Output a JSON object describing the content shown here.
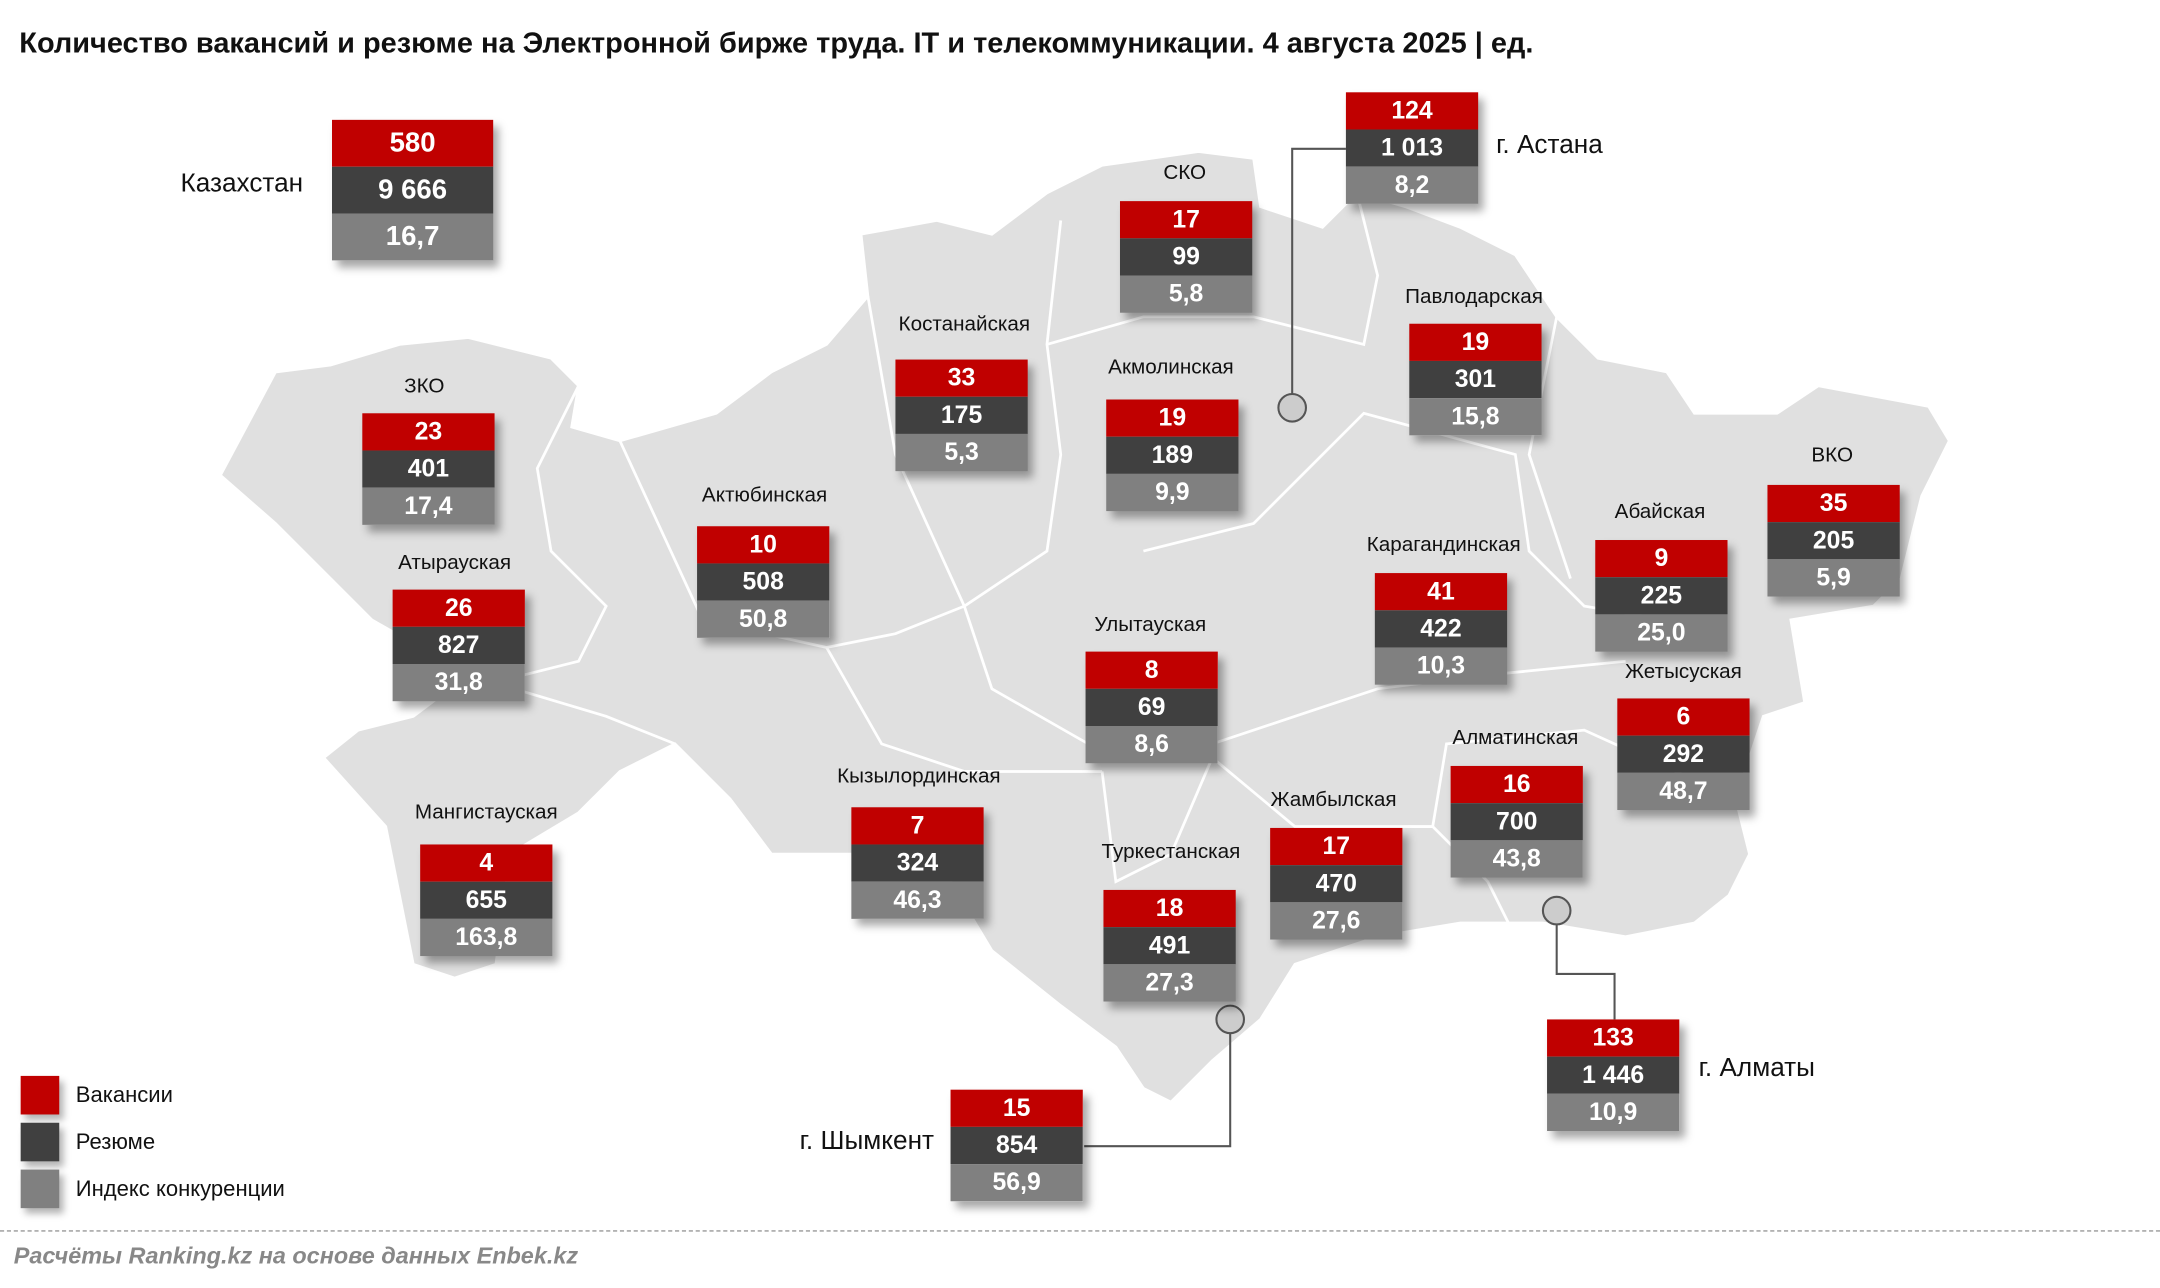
{
  "title": "Количество вакансий и резюме на Электронной бирже труда. IT и телекоммуникации. 4 августа 2025 | ед.",
  "colors": {
    "vacancies": "#c00000",
    "resumes": "#404040",
    "index": "#808080",
    "map_fill": "#e0e0e0"
  },
  "country": {
    "name": "Казахстан",
    "v": "580",
    "r": "9 666",
    "i": "16,7"
  },
  "regions": [
    {
      "name": "г. Астана",
      "v": "124",
      "r": "1 013",
      "i": "8,2"
    },
    {
      "name": "СКО",
      "v": "17",
      "r": "99",
      "i": "5,8"
    },
    {
      "name": "Павлодарская",
      "v": "19",
      "r": "301",
      "i": "15,8"
    },
    {
      "name": "Костанайская",
      "v": "33",
      "r": "175",
      "i": "5,3"
    },
    {
      "name": "Акмолинская",
      "v": "19",
      "r": "189",
      "i": "9,9"
    },
    {
      "name": "ЗКО",
      "v": "23",
      "r": "401",
      "i": "17,4"
    },
    {
      "name": "Актюбинская",
      "v": "10",
      "r": "508",
      "i": "50,8"
    },
    {
      "name": "ВКО",
      "v": "35",
      "r": "205",
      "i": "5,9"
    },
    {
      "name": "Абайская",
      "v": "9",
      "r": "225",
      "i": "25,0"
    },
    {
      "name": "Карагандинская",
      "v": "41",
      "r": "422",
      "i": "10,3"
    },
    {
      "name": "Атырауская",
      "v": "26",
      "r": "827",
      "i": "31,8"
    },
    {
      "name": "Улытауская",
      "v": "8",
      "r": "69",
      "i": "8,6"
    },
    {
      "name": "Жетысуская",
      "v": "6",
      "r": "292",
      "i": "48,7"
    },
    {
      "name": "Алматинская",
      "v": "16",
      "r": "700",
      "i": "43,8"
    },
    {
      "name": "Кызылординская",
      "v": "7",
      "r": "324",
      "i": "46,3"
    },
    {
      "name": "Жамбылская",
      "v": "17",
      "r": "470",
      "i": "27,6"
    },
    {
      "name": "Мангистауская",
      "v": "4",
      "r": "655",
      "i": "163,8"
    },
    {
      "name": "Туркестанская",
      "v": "18",
      "r": "491",
      "i": "27,3"
    },
    {
      "name": "г. Шымкент",
      "v": "15",
      "r": "854",
      "i": "56,9"
    },
    {
      "name": "г. Алматы",
      "v": "133",
      "r": "1 446",
      "i": "10,9"
    }
  ],
  "legend": [
    "Вакансии",
    "Резюме",
    "Индекс конкуренции"
  ],
  "footer": "Расчёты Ranking.kz на основе данных Enbek.kz"
}
